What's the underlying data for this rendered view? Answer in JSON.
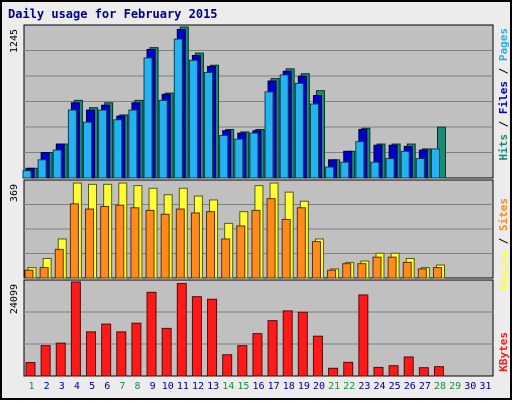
{
  "title": "Daily usage for February 2015",
  "colors": {
    "hits": "#1b8b73",
    "files": "#0000cc",
    "pages": "#22b3f0",
    "visits": "#ffff33",
    "sites": "#ff8c1a",
    "kbytes": "#ff1a1a",
    "panel_bg": "#c0c0c0",
    "weekend_day": "#1b8b42",
    "weekday_day": "#00008b"
  },
  "right_labels": {
    "pages": "Pages",
    "files": "Files",
    "hits": "Hits",
    "visits": "Visits",
    "sites": "Sites",
    "kbytes": "KBytes",
    "sep": " / "
  },
  "chart_data": [
    {
      "type": "bar",
      "panel": "hits-files-pages",
      "ymax_label": "1245",
      "ylim": [
        0,
        1245
      ],
      "categories": [
        "1",
        "2",
        "3",
        "4",
        "5",
        "6",
        "7",
        "8",
        "9",
        "10",
        "11",
        "12",
        "13",
        "14",
        "15",
        "16",
        "17",
        "18",
        "19",
        "20",
        "21",
        "22",
        "23",
        "24",
        "25",
        "26",
        "27",
        "28",
        "29",
        "30",
        "31"
      ],
      "series": [
        {
          "name": "Hits",
          "values": [
            80,
            210,
            280,
            640,
            580,
            620,
            520,
            640,
            1075,
            700,
            1245,
            1030,
            930,
            400,
            380,
            400,
            820,
            900,
            860,
            720,
            150,
            220,
            410,
            280,
            280,
            280,
            240,
            420,
            null,
            null,
            null
          ]
        },
        {
          "name": "Files",
          "values": [
            80,
            210,
            280,
            620,
            560,
            600,
            510,
            620,
            1060,
            690,
            1225,
            1010,
            920,
            390,
            370,
            390,
            800,
            880,
            840,
            680,
            150,
            220,
            400,
            270,
            270,
            260,
            230,
            null,
            null,
            null,
            null
          ]
        },
        {
          "name": "Pages",
          "values": [
            60,
            150,
            230,
            560,
            460,
            560,
            480,
            560,
            990,
            640,
            1145,
            970,
            870,
            350,
            320,
            370,
            710,
            850,
            780,
            610,
            90,
            130,
            300,
            130,
            160,
            220,
            160,
            240,
            null,
            null,
            null
          ]
        }
      ]
    },
    {
      "type": "bar",
      "panel": "visits-sites",
      "ymax_label": "369",
      "ylim": [
        0,
        369
      ],
      "categories": [
        "1",
        "2",
        "3",
        "4",
        "5",
        "6",
        "7",
        "8",
        "9",
        "10",
        "11",
        "12",
        "13",
        "14",
        "15",
        "16",
        "17",
        "18",
        "19",
        "20",
        "21",
        "22",
        "23",
        "24",
        "25",
        "26",
        "27",
        "28",
        "29",
        "30",
        "31"
      ],
      "series": [
        {
          "name": "Visits",
          "values": [
            40,
            75,
            150,
            365,
            360,
            360,
            365,
            355,
            345,
            320,
            345,
            315,
            300,
            210,
            255,
            355,
            365,
            330,
            295,
            150,
            35,
            60,
            65,
            95,
            95,
            75,
            40,
            50,
            null,
            null,
            null
          ]
        },
        {
          "name": "Sites",
          "values": [
            30,
            40,
            110,
            285,
            265,
            275,
            280,
            270,
            260,
            245,
            265,
            250,
            255,
            150,
            200,
            260,
            305,
            225,
            270,
            140,
            30,
            55,
            55,
            80,
            80,
            60,
            35,
            40,
            null,
            null,
            null
          ]
        }
      ]
    },
    {
      "type": "bar",
      "panel": "kbytes",
      "ymax_label": "24099",
      "ylim": [
        0,
        24099
      ],
      "categories": [
        "1",
        "2",
        "3",
        "4",
        "5",
        "6",
        "7",
        "8",
        "9",
        "10",
        "11",
        "12",
        "13",
        "14",
        "15",
        "16",
        "17",
        "18",
        "19",
        "20",
        "21",
        "22",
        "23",
        "24",
        "25",
        "26",
        "27",
        "28",
        "29",
        "30",
        "31"
      ],
      "series": [
        {
          "name": "KBytes",
          "values": [
            3450,
            7780,
            8420,
            24099,
            11320,
            13300,
            11320,
            13540,
            21450,
            12210,
            23710,
            20340,
            19680,
            5440,
            7780,
            10860,
            14200,
            16700,
            16350,
            10210,
            1980,
            3500,
            20780,
            2200,
            2650,
            4880,
            2130,
            2400,
            null,
            null,
            null
          ]
        }
      ]
    }
  ]
}
